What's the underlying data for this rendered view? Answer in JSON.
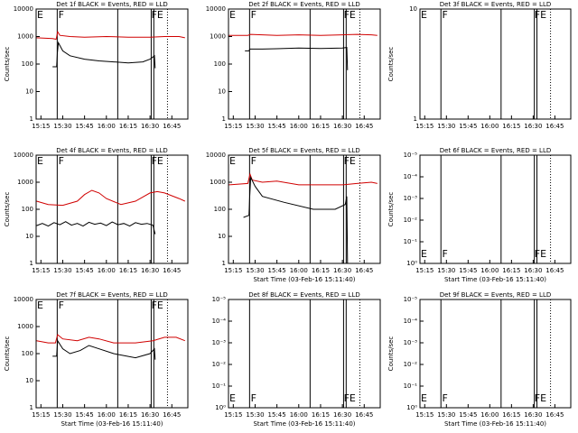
{
  "chart_data": [
    {
      "type": "line",
      "title": "Det 1f BLACK = Events, RED = LLD",
      "ylabel": "Counts/sec",
      "log": true,
      "ylim": [
        1,
        10000
      ],
      "yticks": [
        1,
        10,
        100,
        1000,
        10000
      ],
      "xlim": [
        11.7,
        116
      ],
      "xticks": [
        {
          "value": 15,
          "label": "15:15"
        },
        {
          "value": 30,
          "label": "15:30"
        },
        {
          "value": 45,
          "label": "15:45"
        },
        {
          "value": 60,
          "label": "16:00"
        },
        {
          "value": 75,
          "label": "16:15"
        },
        {
          "value": 90,
          "label": "16:30"
        },
        {
          "value": 105,
          "label": "16:45"
        }
      ],
      "event_lines": [
        26.2,
        67.8,
        90.8,
        92.6
      ],
      "dotted_lines": [
        102
      ],
      "annotations": [
        {
          "x": 12.3,
          "label": "E"
        },
        {
          "x": 27,
          "label": "F"
        },
        {
          "x": 90.9,
          "label": "FE"
        }
      ],
      "series": [
        {
          "color": "#d00000",
          "x": [
            12,
            23,
            25.5,
            26.5,
            28,
            35,
            45,
            60,
            75,
            90,
            100,
            110,
            114
          ],
          "values": [
            900,
            850,
            800,
            1500,
            1100,
            1000,
            950,
            1000,
            950,
            950,
            1000,
            1000,
            900
          ]
        },
        {
          "color": "#000000",
          "x": [
            23,
            25.8,
            26.3,
            27,
            30,
            35,
            45,
            55,
            65,
            75,
            85,
            90,
            92,
            93,
            93.5
          ],
          "values": [
            80,
            80,
            250,
            600,
            300,
            200,
            150,
            130,
            120,
            110,
            120,
            150,
            180,
            200,
            70
          ]
        }
      ]
    },
    {
      "type": "line",
      "title": "Det 2f BLACK = Events, RED = LLD",
      "log": true,
      "ylim": [
        1,
        10000
      ],
      "yticks": [
        1,
        10,
        100,
        1000,
        10000
      ],
      "xlim": [
        11.7,
        116
      ],
      "xticks": [
        {
          "value": 15,
          "label": "15:15"
        },
        {
          "value": 30,
          "label": "15:30"
        },
        {
          "value": 45,
          "label": "15:45"
        },
        {
          "value": 60,
          "label": "16:00"
        },
        {
          "value": 75,
          "label": "16:15"
        },
        {
          "value": 90,
          "label": "16:30"
        },
        {
          "value": 105,
          "label": "16:45"
        }
      ],
      "event_lines": [
        26.2,
        67.8,
        90.8,
        92.6
      ],
      "dotted_lines": [
        102
      ],
      "annotations": [
        {
          "x": 12.3,
          "label": "E"
        },
        {
          "x": 27,
          "label": "F"
        },
        {
          "x": 90.9,
          "label": "FE"
        }
      ],
      "series": [
        {
          "color": "#d00000",
          "x": [
            12,
            25,
            27,
            35,
            45,
            60,
            75,
            90,
            100,
            110,
            114
          ],
          "values": [
            1100,
            1100,
            1200,
            1150,
            1100,
            1150,
            1100,
            1150,
            1200,
            1150,
            1100
          ]
        },
        {
          "color": "#000000",
          "x": [
            23,
            25.8,
            26.5,
            35,
            45,
            60,
            75,
            90,
            93,
            93.5
          ],
          "values": [
            300,
            300,
            350,
            350,
            360,
            380,
            370,
            380,
            400,
            60
          ]
        }
      ]
    },
    {
      "type": "line",
      "title": "Det 3f BLACK = Events, RED = LLD",
      "ylabel": "Counts/sec",
      "log": true,
      "ylim": [
        1,
        10
      ],
      "yticks": [
        1,
        10
      ],
      "xlim": [
        11.7,
        116
      ],
      "xticks": [
        {
          "value": 15,
          "label": "15:15"
        },
        {
          "value": 30,
          "label": "15:30"
        },
        {
          "value": 45,
          "label": "15:45"
        },
        {
          "value": 60,
          "label": "16:00"
        },
        {
          "value": 75,
          "label": "16:15"
        },
        {
          "value": 90,
          "label": "16:30"
        },
        {
          "value": 105,
          "label": "16:45"
        }
      ],
      "event_lines": [
        26.2,
        67.8,
        90.8,
        92.6
      ],
      "dotted_lines": [
        102
      ],
      "annotations": [
        {
          "x": 12.3,
          "label": "E"
        },
        {
          "x": 27,
          "label": "F"
        },
        {
          "x": 90.9,
          "label": "FE"
        }
      ],
      "series": []
    },
    {
      "type": "line",
      "title": "Det 4f BLACK = Events, RED = LLD",
      "ylabel": "Counts/sec",
      "log": true,
      "ylim": [
        1,
        10000
      ],
      "yticks": [
        1,
        10,
        100,
        1000,
        10000
      ],
      "xlim": [
        11.7,
        116
      ],
      "xticks": [
        {
          "value": 15,
          "label": "15:15"
        },
        {
          "value": 30,
          "label": "15:30"
        },
        {
          "value": 45,
          "label": "15:45"
        },
        {
          "value": 60,
          "label": "16:00"
        },
        {
          "value": 75,
          "label": "16:15"
        },
        {
          "value": 90,
          "label": "16:30"
        },
        {
          "value": 105,
          "label": "16:45"
        }
      ],
      "event_lines": [
        26.2,
        67.8,
        90.8,
        92.6
      ],
      "dotted_lines": [
        102
      ],
      "annotations": [
        {
          "x": 12.3,
          "label": "E"
        },
        {
          "x": 27,
          "label": "F"
        },
        {
          "x": 90.9,
          "label": "FE"
        }
      ],
      "series": [
        {
          "color": "#d00000",
          "x": [
            12,
            20,
            30,
            40,
            45,
            50,
            55,
            60,
            70,
            80,
            90,
            95,
            100,
            110,
            114
          ],
          "values": [
            200,
            150,
            140,
            200,
            350,
            500,
            400,
            250,
            150,
            200,
            400,
            450,
            400,
            250,
            200
          ]
        },
        {
          "color": "#000000",
          "x": [
            12,
            16,
            20,
            24,
            28,
            32,
            36,
            40,
            44,
            48,
            52,
            56,
            60,
            64,
            68,
            72,
            76,
            80,
            84,
            88,
            92,
            93.5
          ],
          "values": [
            25,
            30,
            24,
            32,
            27,
            35,
            26,
            30,
            24,
            33,
            28,
            31,
            25,
            34,
            27,
            30,
            24,
            32,
            28,
            30,
            26,
            12
          ]
        }
      ]
    },
    {
      "type": "line",
      "title": "Det 5f BLACK = Events, RED = LLD",
      "xlabel": "Start Time (03-Feb-16 15:11:40)",
      "log": true,
      "ylim": [
        1,
        10000
      ],
      "yticks": [
        1,
        10,
        100,
        1000,
        10000
      ],
      "xlim": [
        11.7,
        116
      ],
      "xticks": [
        {
          "value": 15,
          "label": "15:15"
        },
        {
          "value": 30,
          "label": "15:30"
        },
        {
          "value": 45,
          "label": "15:45"
        },
        {
          "value": 60,
          "label": "16:00"
        },
        {
          "value": 75,
          "label": "16:15"
        },
        {
          "value": 90,
          "label": "16:30"
        },
        {
          "value": 105,
          "label": "16:45"
        }
      ],
      "event_lines": [
        26.2,
        67.8,
        90.8,
        92.6
      ],
      "dotted_lines": [
        102
      ],
      "annotations": [
        {
          "x": 12.3,
          "label": "E"
        },
        {
          "x": 27,
          "label": "F"
        },
        {
          "x": 90.9,
          "label": "FE"
        }
      ],
      "series": [
        {
          "color": "#d00000",
          "x": [
            12,
            25,
            26.5,
            28,
            35,
            45,
            60,
            75,
            90,
            100,
            110,
            114
          ],
          "values": [
            800,
            900,
            2000,
            1200,
            1000,
            1100,
            800,
            800,
            800,
            900,
            1000,
            900
          ]
        },
        {
          "color": "#000000",
          "x": [
            22,
            25.8,
            26.3,
            27,
            30,
            35,
            50,
            70,
            85,
            92,
            93,
            93.5
          ],
          "values": [
            50,
            60,
            300,
            1500,
            700,
            300,
            180,
            100,
            100,
            150,
            300,
            1
          ]
        }
      ]
    },
    {
      "type": "line",
      "title": "Det 6f BLACK = Events, RED = LLD",
      "ylabel": "Counts/sec",
      "xlabel": "Start Time (03-Feb-16 15:11:40)",
      "log": true,
      "ylim": [
        1,
        1e-05
      ],
      "yticks": [
        {
          "value": 1e-05,
          "label": "10⁻⁵"
        },
        {
          "value": 0.0001,
          "label": "10⁻⁴"
        },
        {
          "value": 0.001,
          "label": "10⁻³"
        },
        {
          "value": 0.01,
          "label": "10⁻²"
        },
        {
          "value": 0.1,
          "label": "10⁻¹"
        },
        {
          "value": 1,
          "label": "10⁰"
        }
      ],
      "xlim": [
        11.7,
        116
      ],
      "xticks": [
        {
          "value": 15,
          "label": "15:15"
        },
        {
          "value": 30,
          "label": "15:30"
        },
        {
          "value": 45,
          "label": "15:45"
        },
        {
          "value": 60,
          "label": "16:00"
        },
        {
          "value": 75,
          "label": "16:15"
        },
        {
          "value": 90,
          "label": "16:30"
        },
        {
          "value": 105,
          "label": "16:45"
        }
      ],
      "event_lines": [
        26.2,
        67.8,
        90.8,
        92.6
      ],
      "dotted_lines": [
        102
      ],
      "annotations": [
        {
          "x": 12.3,
          "label": "E"
        },
        {
          "x": 27,
          "label": "F"
        },
        {
          "x": 90.9,
          "label": "FE"
        }
      ],
      "series": []
    },
    {
      "type": "line",
      "title": "Det 7f BLACK = Events, RED = LLD",
      "ylabel": "Counts/sec",
      "xlabel": "Start Time (03-Feb-16 15:11:40)",
      "log": true,
      "ylim": [
        1,
        10000
      ],
      "yticks": [
        1,
        10,
        100,
        1000,
        10000
      ],
      "xlim": [
        11.7,
        116
      ],
      "xticks": [
        {
          "value": 15,
          "label": "15:15"
        },
        {
          "value": 30,
          "label": "15:30"
        },
        {
          "value": 45,
          "label": "15:45"
        },
        {
          "value": 60,
          "label": "16:00"
        },
        {
          "value": 75,
          "label": "16:15"
        },
        {
          "value": 90,
          "label": "16:30"
        },
        {
          "value": 105,
          "label": "16:45"
        }
      ],
      "event_lines": [
        26.2,
        67.8,
        90.8,
        92.6
      ],
      "dotted_lines": [
        102
      ],
      "annotations": [
        {
          "x": 12.3,
          "label": "E"
        },
        {
          "x": 27,
          "label": "F"
        },
        {
          "x": 90.9,
          "label": "FE"
        }
      ],
      "series": [
        {
          "color": "#d00000",
          "x": [
            12,
            20,
            25,
            26.5,
            30,
            40,
            48,
            55,
            65,
            80,
            92,
            100,
            108,
            114
          ],
          "values": [
            300,
            250,
            250,
            500,
            350,
            300,
            400,
            350,
            250,
            250,
            300,
            400,
            400,
            300
          ]
        },
        {
          "color": "#000000",
          "x": [
            23,
            25.8,
            26.5,
            30,
            35,
            42,
            48,
            55,
            65,
            80,
            90,
            93,
            93.5
          ],
          "values": [
            80,
            80,
            300,
            150,
            100,
            130,
            200,
            150,
            100,
            70,
            100,
            150,
            60
          ]
        }
      ]
    },
    {
      "type": "line",
      "title": "Det 8f BLACK = Events, RED = LLD",
      "xlabel": "Start Time (03-Feb-16 15:11:40)",
      "log": true,
      "ylim": [
        1,
        1e-05
      ],
      "yticks": [
        {
          "value": 1e-05,
          "label": "10⁻⁵"
        },
        {
          "value": 0.0001,
          "label": "10⁻⁴"
        },
        {
          "value": 0.001,
          "label": "10⁻³"
        },
        {
          "value": 0.01,
          "label": "10⁻²"
        },
        {
          "value": 0.1,
          "label": "10⁻¹"
        },
        {
          "value": 1,
          "label": "10⁰"
        }
      ],
      "xlim": [
        11.7,
        116
      ],
      "xticks": [
        {
          "value": 15,
          "label": "15:15"
        },
        {
          "value": 30,
          "label": "15:30"
        },
        {
          "value": 45,
          "label": "15:45"
        },
        {
          "value": 60,
          "label": "16:00"
        },
        {
          "value": 75,
          "label": "16:15"
        },
        {
          "value": 90,
          "label": "16:30"
        },
        {
          "value": 105,
          "label": "16:45"
        }
      ],
      "event_lines": [
        26.2,
        67.8,
        90.8,
        92.6
      ],
      "dotted_lines": [
        102
      ],
      "annotations": [
        {
          "x": 12.3,
          "label": "E"
        },
        {
          "x": 27,
          "label": "F"
        },
        {
          "x": 90.9,
          "label": "FE"
        }
      ],
      "series": []
    },
    {
      "type": "line",
      "title": "Det 9f BLACK = Events, RED = LLD",
      "ylabel": "Counts/sec",
      "xlabel": "Start Time (03-Feb-16 15:11:40)",
      "log": true,
      "ylim": [
        1,
        1e-05
      ],
      "yticks": [
        {
          "value": 1e-05,
          "label": "10⁻⁵"
        },
        {
          "value": 0.0001,
          "label": "10⁻⁴"
        },
        {
          "value": 0.001,
          "label": "10⁻³"
        },
        {
          "value": 0.01,
          "label": "10⁻²"
        },
        {
          "value": 0.1,
          "label": "10⁻¹"
        },
        {
          "value": 1,
          "label": "10⁰"
        }
      ],
      "xlim": [
        11.7,
        116
      ],
      "xticks": [
        {
          "value": 15,
          "label": "15:15"
        },
        {
          "value": 30,
          "label": "15:30"
        },
        {
          "value": 45,
          "label": "15:45"
        },
        {
          "value": 60,
          "label": "16:00"
        },
        {
          "value": 75,
          "label": "16:15"
        },
        {
          "value": 90,
          "label": "16:30"
        },
        {
          "value": 105,
          "label": "16:45"
        }
      ],
      "event_lines": [
        26.2,
        67.8,
        90.8,
        92.6
      ],
      "dotted_lines": [
        102
      ],
      "annotations": [
        {
          "x": 12.3,
          "label": "E"
        },
        {
          "x": 27,
          "label": "F"
        },
        {
          "x": 90.9,
          "label": "FE"
        }
      ],
      "series": []
    }
  ]
}
